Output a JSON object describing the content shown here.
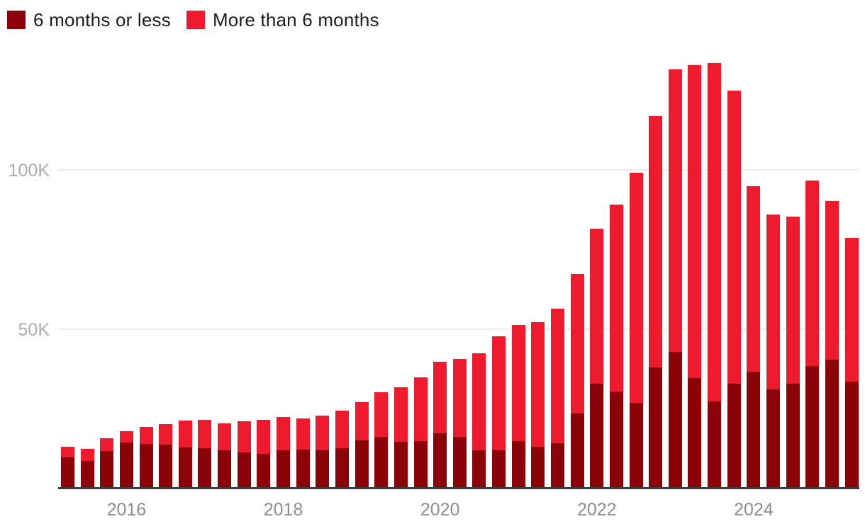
{
  "chart_data": {
    "type": "bar",
    "stacked": true,
    "title": "",
    "unit": "K (thousands)",
    "ylim": [
      0,
      140
    ],
    "grid": "horizontal",
    "legend_position": "top-left",
    "categories": [
      "2015 Q2",
      "2015 Q3",
      "2015 Q4",
      "2016 Q1",
      "2016 Q2",
      "2016 Q3",
      "2016 Q4",
      "2017 Q1",
      "2017 Q2",
      "2017 Q3",
      "2017 Q4",
      "2018 Q1",
      "2018 Q2",
      "2018 Q3",
      "2018 Q4",
      "2019 Q1",
      "2019 Q2",
      "2019 Q3",
      "2019 Q4",
      "2020 Q1",
      "2020 Q2",
      "2020 Q3",
      "2020 Q4",
      "2021 Q1",
      "2021 Q2",
      "2021 Q3",
      "2021 Q4",
      "2022 Q1",
      "2022 Q2",
      "2022 Q3",
      "2022 Q4",
      "2023 Q1",
      "2023 Q2",
      "2023 Q3",
      "2023 Q4",
      "2024 Q1",
      "2024 Q2",
      "2024 Q3",
      "2024 Q4",
      "2025 Q1",
      "2025 Q2"
    ],
    "series": [
      {
        "name": "6 months or less",
        "color_key": "dark",
        "values": [
          9.8,
          8.7,
          11.8,
          14.4,
          14.0,
          13.8,
          12.9,
          12.7,
          12.0,
          11.3,
          10.9,
          12.0,
          12.2,
          12.0,
          12.7,
          15.1,
          16.2,
          14.7,
          14.9,
          17.3,
          16.2,
          12.0,
          11.9,
          14.8,
          13.1,
          14.2,
          23.5,
          33.0,
          30.4,
          26.8,
          38.1,
          43.0,
          34.6,
          27.3,
          33.0,
          36.6,
          31.1,
          32.9,
          38.4,
          40.4,
          33.6
        ]
      },
      {
        "name": "More than 6 months",
        "color_key": "red",
        "values": [
          3.3,
          3.7,
          4.0,
          3.6,
          5.3,
          6.4,
          8.4,
          8.9,
          8.4,
          9.8,
          10.7,
          10.4,
          9.8,
          10.9,
          11.7,
          12.0,
          14.0,
          17.1,
          20.0,
          22.5,
          24.5,
          30.4,
          35.8,
          36.5,
          39.2,
          42.2,
          43.8,
          48.6,
          58.7,
          72.3,
          78.8,
          88.6,
          98.3,
          106.3,
          91.9,
          58.3,
          54.9,
          52.4,
          58.3,
          49.8,
          45.1
        ]
      }
    ],
    "totals": [
      13.1,
      12.4,
      15.8,
      18.0,
      19.3,
      20.2,
      21.3,
      21.6,
      20.4,
      21.1,
      21.6,
      22.4,
      22.0,
      22.9,
      24.4,
      27.1,
      30.2,
      31.8,
      34.9,
      39.8,
      40.7,
      42.4,
      47.7,
      51.3,
      52.3,
      56.4,
      67.3,
      81.6,
      89.1,
      99.1,
      116.9,
      131.6,
      132.9,
      133.6,
      124.9,
      94.9,
      86.0,
      85.3,
      96.7,
      90.2,
      78.7
    ],
    "x_ticks": [
      {
        "label": "2016",
        "index": 3
      },
      {
        "label": "2018",
        "index": 11
      },
      {
        "label": "2020",
        "index": 19
      },
      {
        "label": "2022",
        "index": 27
      },
      {
        "label": "2024",
        "index": 35
      }
    ],
    "y_ticks": [
      {
        "label": "50K",
        "value": 50
      },
      {
        "label": "100K",
        "value": 100
      }
    ],
    "colors": {
      "dark": "#8b0309",
      "red": "#ee1b2e",
      "grid": "#ebebeb",
      "axis_line": "#3b3b3b",
      "x_tick_text": "#8d8d8d",
      "y_tick_text": "#ababab",
      "legend_text": "#1d1d1d",
      "background": "#ffffff"
    }
  }
}
